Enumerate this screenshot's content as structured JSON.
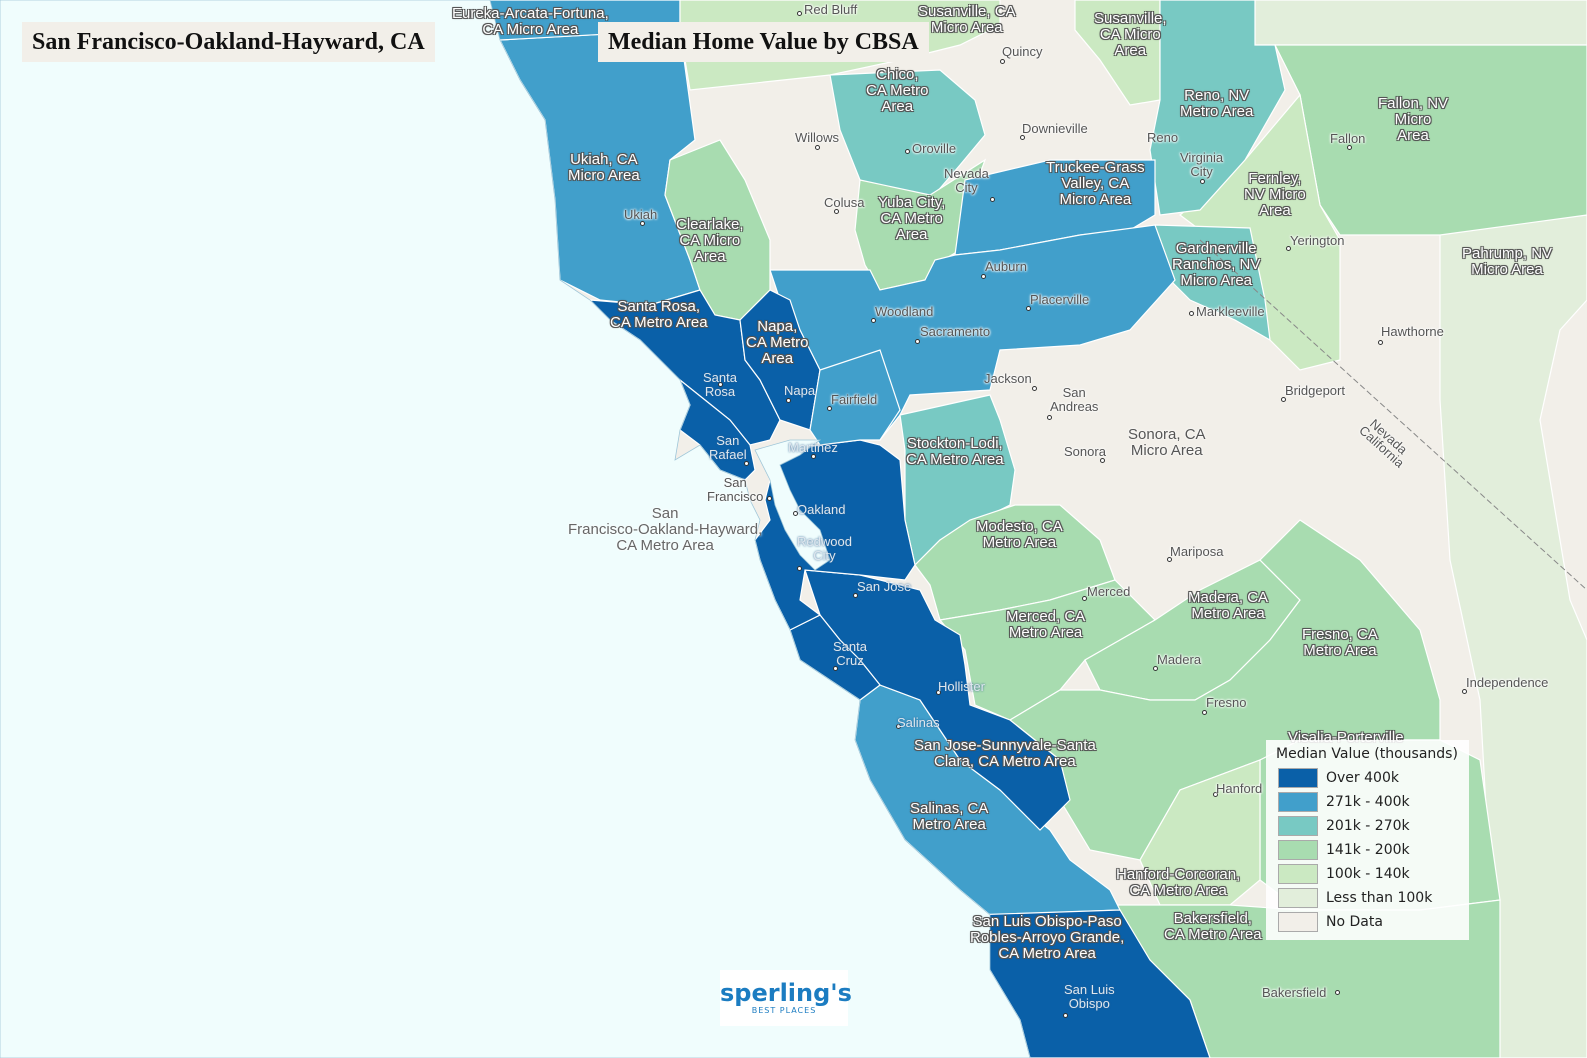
{
  "header": {
    "focus_title": "San Francisco-Oakland-Hayward, CA",
    "map_title": "Median Home Value by CBSA"
  },
  "legend": {
    "title": "Median Value (thousands)",
    "items": [
      {
        "label": "Over 400k",
        "color": "#0a60a8"
      },
      {
        "label": "271k - 400k",
        "color": "#419fcb"
      },
      {
        "label": "201k - 270k",
        "color": "#78c9c3"
      },
      {
        "label": "141k - 200k",
        "color": "#a8dcb0"
      },
      {
        "label": "100k - 140k",
        "color": "#cbe9c2"
      },
      {
        "label": "Less than 100k",
        "color": "#e2eedb"
      },
      {
        "label": "No Data",
        "color": "#f2efe9"
      }
    ]
  },
  "colors": {
    "ocean": "#f0fdfd",
    "land_no_data": "#f2efe9"
  },
  "areas": [
    {
      "label": "Eureka-Arcata-Fortuna,\nCA Micro Area",
      "class": "over_400k_partial"
    },
    {
      "label": "Ukiah, CA\nMicro Area",
      "class": "271k-400k"
    },
    {
      "label": "Clearlake,\nCA Micro\nArea",
      "class": "141k-200k"
    },
    {
      "label": "Chico,\nCA Metro\nArea",
      "class": "201k-270k"
    },
    {
      "label": "Yuba City,\nCA Metro\nArea",
      "class": "141k-200k"
    },
    {
      "label": "Truckee-Grass\nValley, CA\nMicro Area",
      "class": "271k-400k"
    },
    {
      "label": "Susanville,\nCA Micro\nArea",
      "class": "100k-140k"
    },
    {
      "label": "Susanville, CA\nMicro Area",
      "class": "partial"
    },
    {
      "label": "Reno, NV\nMetro Area",
      "class": "201k-270k"
    },
    {
      "label": "Fallon, NV\nMicro\nArea",
      "class": "141k-200k"
    },
    {
      "label": "Fernley,\nNV Micro\nArea",
      "class": "100k-140k"
    },
    {
      "label": "Gardnerville\nRanchos, NV\nMicro Area",
      "class": "201k-270k"
    },
    {
      "label": "Pahrump, NV\nMicro Area",
      "class": "less-than-100k"
    },
    {
      "label": "Santa Rosa,\nCA Metro Area",
      "class": "over-400k"
    },
    {
      "label": "Napa,\nCA Metro\nArea",
      "class": "over-400k"
    },
    {
      "label": "Stockton-Lodi,\nCA Metro Area",
      "class": "201k-270k"
    },
    {
      "label": "Sonora, CA\nMicro Area",
      "class": "no-data"
    },
    {
      "label": "Modesto, CA\nMetro Area",
      "class": "141k-200k"
    },
    {
      "label": "Merced, CA\nMetro Area",
      "class": "141k-200k"
    },
    {
      "label": "Madera, CA\nMetro Area",
      "class": "141k-200k"
    },
    {
      "label": "Fresno, CA\nMetro Area",
      "class": "141k-200k"
    },
    {
      "label": "San Jose-Sunnyvale-Santa\nClara, CA Metro Area",
      "class": "over-400k"
    },
    {
      "label": "Salinas, CA\nMetro Area",
      "class": "271k-400k"
    },
    {
      "label": "Hanford-Corcoran,\nCA Metro Area",
      "class": "100k-140k"
    },
    {
      "label": "Bakersfield,\nCA Metro Area",
      "class": "141k-200k"
    },
    {
      "label": "San Luis Obispo-Paso\nRobles-Arroyo Grande,\nCA Metro Area",
      "class": "over-400k"
    },
    {
      "label": "Visalia-Porterville",
      "class": "141k-200k"
    }
  ],
  "focus_area_label": "San\nFrancisco-Oakland-Hayward,\nCA Metro Area",
  "cities": [
    "Red Bluff",
    "Quincy",
    "Willows",
    "Oroville",
    "Downieville",
    "Reno",
    "Virginia\nCity",
    "Nevada\nCity",
    "Colusa",
    "Ukiah",
    "Fallon",
    "Yerington",
    "Auburn",
    "Placerville",
    "Markleeville",
    "Woodland",
    "Sacramento",
    "Hawthorne",
    "Jackson",
    "San\nAndreas",
    "Bridgeport",
    "Santa\nRosa",
    "Napa",
    "Fairfield",
    "Martinez",
    "Sonora",
    "San\nRafael",
    "San\nFrancisco",
    "Oakland",
    "Redwood\nCity",
    "Mariposa",
    "San Jose",
    "Merced",
    "Santa\nCruz",
    "Madera",
    "Hollister",
    "Independence",
    "Fresno",
    "Salinas",
    "Hanford",
    "Bakersfield",
    "San Luis\nObispo"
  ],
  "state_line": {
    "upper": "Nevada",
    "lower": "California"
  },
  "logo": {
    "name": "sperling's",
    "tagline": "BEST PLACES"
  }
}
